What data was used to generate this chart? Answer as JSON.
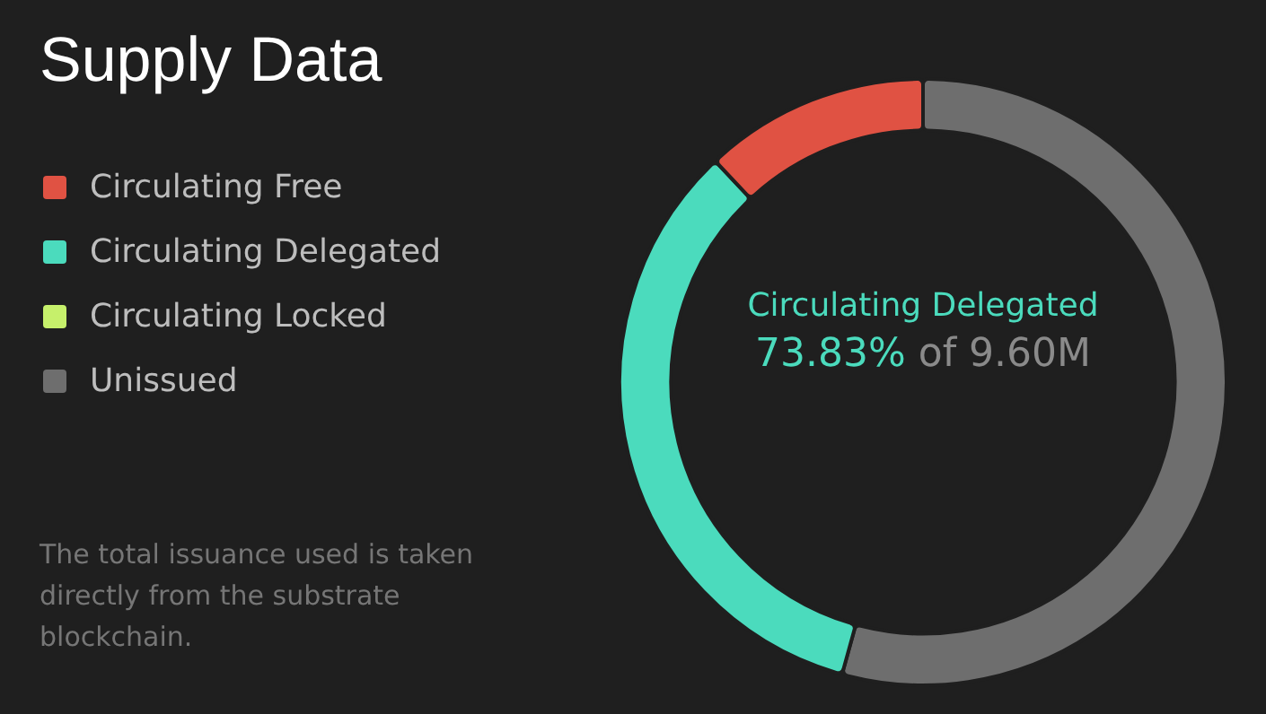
{
  "chart_data": {
    "type": "donut",
    "title": "Supply Data",
    "categories": [
      "Circulating Free",
      "Circulating Delegated",
      "Circulating Locked",
      "Unissued"
    ],
    "values": [
      12.0,
      33.7,
      0,
      54.3
    ],
    "colors": [
      "#e05243",
      "#4bdbbd",
      "#c6f06b",
      "#6e6e6e"
    ],
    "legend": "left",
    "annotations": [
      "Circulating Delegated",
      "73.83%",
      "of 9.60M",
      "The total issuance used is taken directly from the substrate blockchain."
    ]
  }
}
